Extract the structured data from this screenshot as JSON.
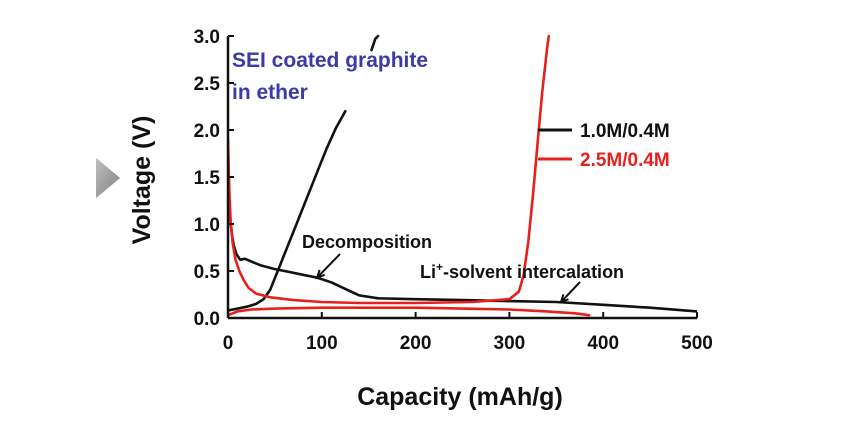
{
  "chart_data": {
    "type": "line",
    "xlabel": "Capacity (mAh/g)",
    "ylabel": "Voltage (V)",
    "xlim": [
      0,
      500
    ],
    "ylim": [
      0,
      3.0
    ],
    "xticks": [
      "0",
      "100",
      "200",
      "300",
      "400",
      "500"
    ],
    "yticks": [
      "0.0",
      "0.5",
      "1.0",
      "1.5",
      "2.0",
      "2.5",
      "3.0"
    ],
    "xtick_values": [
      0,
      100,
      200,
      300,
      400,
      500
    ],
    "ytick_values": [
      0,
      0.5,
      1.0,
      1.5,
      2.0,
      2.5,
      3.0
    ],
    "grid": false,
    "legend_position": "right",
    "inset_label": {
      "line1": "SEI coated graphite",
      "line2": "in ether",
      "color": "#3a3aa8"
    },
    "annotations": [
      {
        "text": "Decomposition",
        "points_to": [
          95,
          0.43
        ]
      },
      {
        "text_main": "Li",
        "text_sup": "+",
        "text_rest": "-solvent intercalation",
        "points_to": [
          355,
          0.17
        ]
      }
    ],
    "series": [
      {
        "name": "1.0M/0.4M",
        "color": "#111111",
        "segments": [
          {
            "part": "discharge",
            "points": [
              [
                0,
                1.4
              ],
              [
                2,
                1.1
              ],
              [
                4,
                0.9
              ],
              [
                6,
                0.78
              ],
              [
                9,
                0.68
              ],
              [
                13,
                0.62
              ],
              [
                18,
                0.63
              ],
              [
                25,
                0.6
              ],
              [
                35,
                0.56
              ],
              [
                50,
                0.52
              ],
              [
                65,
                0.49
              ],
              [
                80,
                0.46
              ],
              [
                95,
                0.43
              ],
              [
                110,
                0.38
              ],
              [
                125,
                0.31
              ],
              [
                140,
                0.24
              ],
              [
                160,
                0.21
              ],
              [
                200,
                0.2
              ],
              [
                250,
                0.19
              ],
              [
                300,
                0.18
              ],
              [
                350,
                0.17
              ],
              [
                400,
                0.14
              ],
              [
                450,
                0.11
              ],
              [
                500,
                0.07
              ]
            ]
          },
          {
            "part": "charge",
            "points": [
              [
                0,
                0.08
              ],
              [
                10,
                0.1
              ],
              [
                20,
                0.12
              ],
              [
                30,
                0.15
              ],
              [
                38,
                0.2
              ],
              [
                45,
                0.3
              ],
              [
                55,
                0.55
              ],
              [
                65,
                0.8
              ],
              [
                75,
                1.05
              ],
              [
                85,
                1.3
              ],
              [
                95,
                1.55
              ],
              [
                105,
                1.8
              ],
              [
                115,
                2.02
              ],
              [
                125,
                2.2
              ]
            ]
          },
          {
            "part": "charge-upper",
            "points": [
              [
                153,
                2.85
              ],
              [
                157,
                2.97
              ],
              [
                160,
                3.0
              ]
            ]
          }
        ]
      },
      {
        "name": "2.5M/0.4M",
        "color": "#e8201c",
        "segments": [
          {
            "part": "discharge",
            "points": [
              [
                0,
                1.9
              ],
              [
                1,
                1.5
              ],
              [
                2,
                1.2
              ],
              [
                3,
                1.0
              ],
              [
                5,
                0.8
              ],
              [
                8,
                0.62
              ],
              [
                12,
                0.5
              ],
              [
                17,
                0.4
              ],
              [
                22,
                0.32
              ],
              [
                30,
                0.26
              ],
              [
                45,
                0.22
              ],
              [
                70,
                0.19
              ],
              [
                100,
                0.17
              ],
              [
                140,
                0.16
              ],
              [
                200,
                0.16
              ],
              [
                260,
                0.17
              ],
              [
                300,
                0.2
              ],
              [
                310,
                0.28
              ],
              [
                315,
                0.45
              ],
              [
                320,
                0.8
              ],
              [
                325,
                1.3
              ],
              [
                330,
                1.85
              ],
              [
                335,
                2.4
              ],
              [
                340,
                2.85
              ],
              [
                342,
                3.0
              ]
            ]
          },
          {
            "part": "charge",
            "points": [
              [
                0,
                0.03
              ],
              [
                10,
                0.07
              ],
              [
                25,
                0.09
              ],
              [
                50,
                0.1
              ],
              [
                100,
                0.11
              ],
              [
                150,
                0.11
              ],
              [
                200,
                0.11
              ],
              [
                250,
                0.1
              ],
              [
                300,
                0.09
              ],
              [
                340,
                0.07
              ],
              [
                370,
                0.05
              ],
              [
                385,
                0.03
              ]
            ]
          }
        ]
      }
    ]
  }
}
